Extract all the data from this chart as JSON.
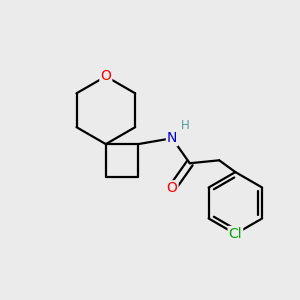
{
  "background_color": "#ebebeb",
  "bond_color": "#000000",
  "bond_width": 1.6,
  "atom_colors": {
    "O": "#ff0000",
    "N": "#0000cc",
    "Cl": "#00aa00",
    "H": "#5a9a9a",
    "C": "#000000"
  },
  "figsize": [
    3.0,
    3.0
  ],
  "dpi": 100
}
